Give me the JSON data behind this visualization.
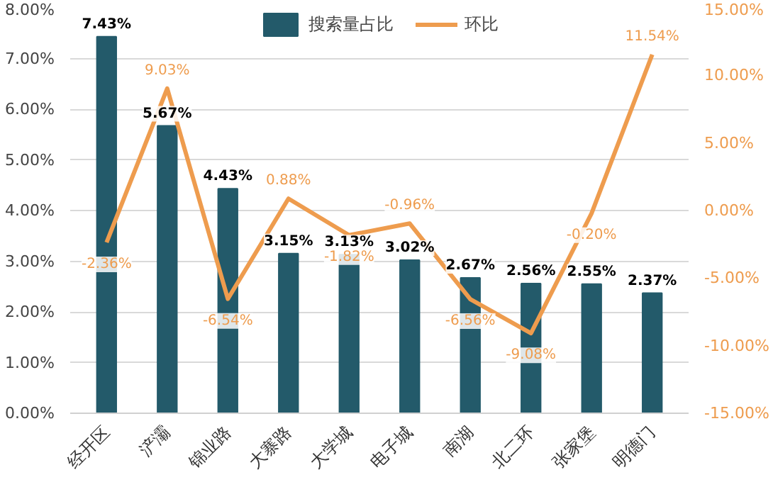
{
  "chart_data": {
    "type": "bar",
    "categories": [
      "经开区",
      "浐灞",
      "锦业路",
      "大寨路",
      "大学城",
      "电子城",
      "南湖",
      "北二环",
      "张家堡",
      "明德门"
    ],
    "series": [
      {
        "name": "搜索量占比",
        "color": "#235a6a",
        "values": [
          7.43,
          5.67,
          4.43,
          3.15,
          3.13,
          3.02,
          2.67,
          2.56,
          2.55,
          2.37
        ],
        "value_labels": [
          "7.43%",
          "5.67%",
          "4.43%",
          "3.15%",
          "3.13%",
          "3.02%",
          "2.67%",
          "2.56%",
          "2.55%",
          "2.37%"
        ]
      },
      {
        "name": "环比",
        "type": "line",
        "axis": "y2",
        "color": "#ee9c4e",
        "values": [
          -2.36,
          9.03,
          -6.54,
          0.88,
          -1.82,
          -0.96,
          -6.56,
          -9.08,
          -0.2,
          11.54
        ],
        "value_labels": [
          "-2.36%",
          "9.03%",
          "-6.54%",
          "0.88%",
          "-1.82%",
          "-0.96%",
          "-6.56%",
          "-9.08%",
          "-0.20%",
          "11.54%"
        ]
      }
    ],
    "ylim": [
      0,
      8
    ],
    "yticks": [
      {
        "value": 0,
        "label": "0.00%"
      },
      {
        "value": 1,
        "label": "1.00%"
      },
      {
        "value": 2,
        "label": "2.00%"
      },
      {
        "value": 3,
        "label": "3.00%"
      },
      {
        "value": 4,
        "label": "4.00%"
      },
      {
        "value": 5,
        "label": "5.00%"
      },
      {
        "value": 6,
        "label": "6.00%"
      },
      {
        "value": 7,
        "label": "7.00%"
      },
      {
        "value": 8,
        "label": "8.00%"
      }
    ],
    "y2lim": [
      -15,
      15
    ],
    "y2ticks": [
      {
        "value": -15,
        "label": "-15.00%"
      },
      {
        "value": -10,
        "label": "-10.00%"
      },
      {
        "value": -5,
        "label": "-5.00%"
      },
      {
        "value": 0,
        "label": "0.00%"
      },
      {
        "value": 5,
        "label": "5.00%"
      },
      {
        "value": 10,
        "label": "10.00%"
      },
      {
        "value": 15,
        "label": "15.00%"
      }
    ],
    "grid": "y",
    "legend": "top",
    "marker": "none",
    "line_style": "solid"
  }
}
